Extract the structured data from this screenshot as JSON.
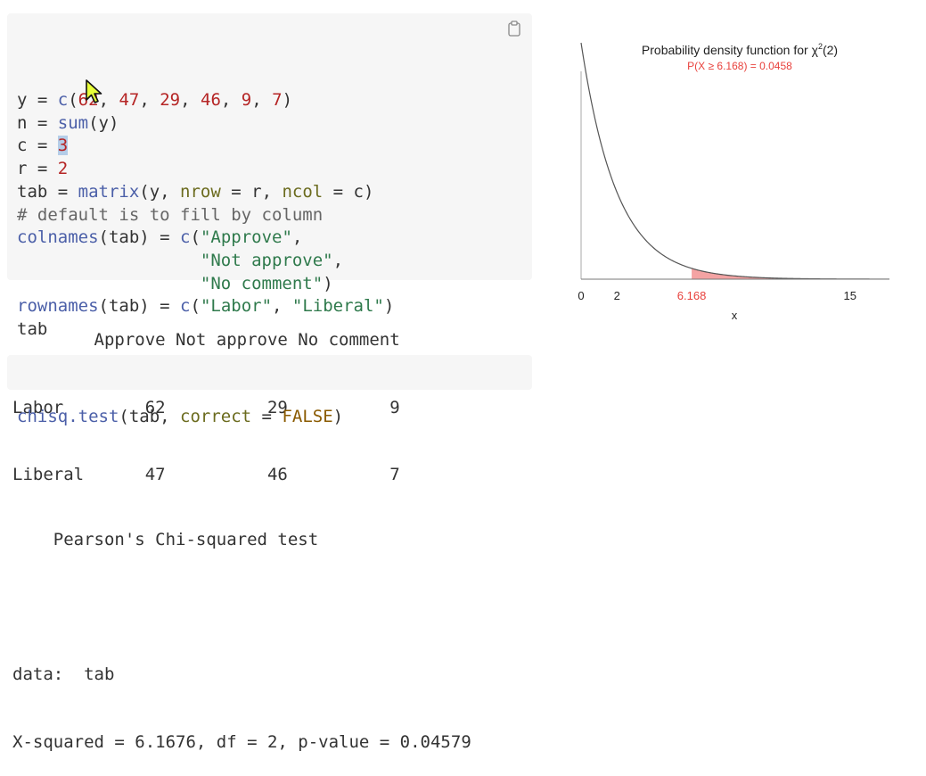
{
  "code_block_1": {
    "lines": [
      [
        {
          "t": "y = ",
          "c": ""
        },
        {
          "t": "c",
          "c": "fn"
        },
        {
          "t": "(",
          "c": ""
        },
        {
          "t": "62",
          "c": "num"
        },
        {
          "t": ", ",
          "c": ""
        },
        {
          "t": "47",
          "c": "num"
        },
        {
          "t": ", ",
          "c": ""
        },
        {
          "t": "29",
          "c": "num"
        },
        {
          "t": ", ",
          "c": ""
        },
        {
          "t": "46",
          "c": "num"
        },
        {
          "t": ", ",
          "c": ""
        },
        {
          "t": "9",
          "c": "num"
        },
        {
          "t": ", ",
          "c": ""
        },
        {
          "t": "7",
          "c": "num"
        },
        {
          "t": ")",
          "c": ""
        }
      ],
      [
        {
          "t": "n = ",
          "c": ""
        },
        {
          "t": "sum",
          "c": "fn"
        },
        {
          "t": "(y)",
          "c": ""
        }
      ],
      [
        {
          "t": "c = ",
          "c": ""
        },
        {
          "t": "3",
          "c": "sel"
        }
      ],
      [
        {
          "t": "r = ",
          "c": ""
        },
        {
          "t": "2",
          "c": "num"
        }
      ],
      [
        {
          "t": "tab = ",
          "c": ""
        },
        {
          "t": "matrix",
          "c": "fn"
        },
        {
          "t": "(y, ",
          "c": ""
        },
        {
          "t": "nrow",
          "c": "arg"
        },
        {
          "t": " = r, ",
          "c": ""
        },
        {
          "t": "ncol",
          "c": "arg"
        },
        {
          "t": " = c)",
          "c": ""
        }
      ],
      [
        {
          "t": "# default is to fill by column",
          "c": "cmt"
        }
      ],
      [
        {
          "t": "colnames",
          "c": "fn"
        },
        {
          "t": "(tab) = ",
          "c": ""
        },
        {
          "t": "c",
          "c": "fn"
        },
        {
          "t": "(",
          "c": ""
        },
        {
          "t": "\"Approve\"",
          "c": "str"
        },
        {
          "t": ",",
          "c": ""
        }
      ],
      [
        {
          "t": "                  ",
          "c": ""
        },
        {
          "t": "\"Not approve\"",
          "c": "str"
        },
        {
          "t": ",",
          "c": ""
        }
      ],
      [
        {
          "t": "                  ",
          "c": ""
        },
        {
          "t": "\"No comment\"",
          "c": "str"
        },
        {
          "t": ")",
          "c": ""
        }
      ],
      [
        {
          "t": "rownames",
          "c": "fn"
        },
        {
          "t": "(tab) = ",
          "c": ""
        },
        {
          "t": "c",
          "c": "fn"
        },
        {
          "t": "(",
          "c": ""
        },
        {
          "t": "\"Labor\"",
          "c": "str"
        },
        {
          "t": ", ",
          "c": ""
        },
        {
          "t": "\"Liberal\"",
          "c": "str"
        },
        {
          "t": ")",
          "c": ""
        }
      ],
      [
        {
          "t": "tab",
          "c": ""
        }
      ]
    ]
  },
  "output_table": {
    "lines": [
      "        Approve Not approve No comment",
      "Labor        62          29          9",
      "Liberal      47          46          7"
    ]
  },
  "code_block_2": {
    "lines": [
      [
        {
          "t": "chisq.test",
          "c": "fn"
        },
        {
          "t": "(tab, ",
          "c": ""
        },
        {
          "t": "correct",
          "c": "arg"
        },
        {
          "t": " = ",
          "c": ""
        },
        {
          "t": "FALSE",
          "c": "const"
        },
        {
          "t": ")",
          "c": ""
        }
      ]
    ]
  },
  "output_test": {
    "lines": [
      "",
      "    Pearson's Chi-squared test",
      "",
      "data:  tab",
      "X-squared = 6.1676, df = 2, p-value = 0.04579"
    ]
  },
  "icons": {
    "copy": "clipboard-icon",
    "cursor": "mouse-pointer-icon"
  },
  "colors": {
    "shade": "#f4a3a3",
    "annotation": "#e8413c",
    "curve": "#555555"
  },
  "chart_data": {
    "type": "area",
    "title_prefix": "Probability density function for ",
    "title_symbol": "χ",
    "title_sup": "2",
    "title_suffix": "(2)",
    "subtitle": "P(X ≥ 6.168) = 0.0458",
    "xlabel": "x",
    "xlim": [
      0,
      17.2
    ],
    "ylim": [
      0,
      0.5
    ],
    "df": 2,
    "critical_value": 6.168,
    "p_value": 0.0458,
    "x_ticks": [
      {
        "value": 0,
        "label": "0",
        "highlight": false
      },
      {
        "value": 2,
        "label": "2",
        "highlight": false
      },
      {
        "value": 6.168,
        "label": "6.168",
        "highlight": true
      },
      {
        "value": 15,
        "label": "15",
        "highlight": false
      }
    ]
  }
}
